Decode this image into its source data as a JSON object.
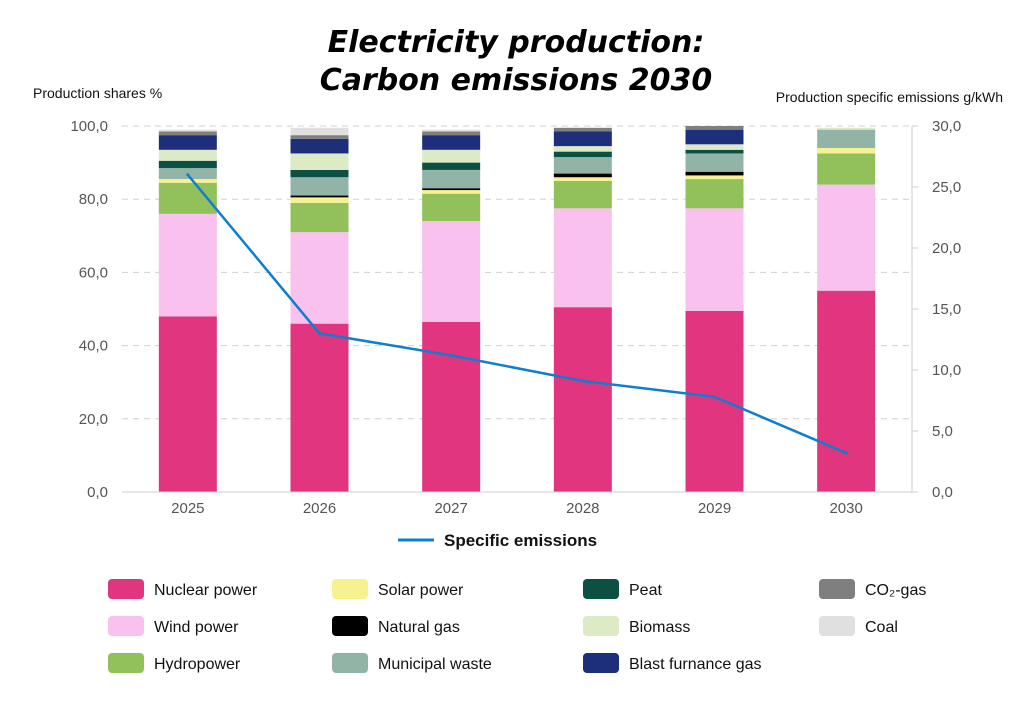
{
  "chart_data": {
    "type": "bar",
    "title_lines": [
      "Electricity production:",
      "Carbon emissions 2030"
    ],
    "ylabel_left": "Production shares %",
    "ylabel_right": "Production specific emissions g/kWh",
    "categories": [
      "2025",
      "2026",
      "2027",
      "2028",
      "2029",
      "2030"
    ],
    "ylim_left": [
      0,
      100
    ],
    "ylim_right": [
      0,
      30
    ],
    "left_ticks": [
      "0,0",
      "20,0",
      "40,0",
      "60,0",
      "80,0",
      "100,0"
    ],
    "right_ticks": [
      "0,0",
      "5,0",
      "10,0",
      "15,0",
      "20,0",
      "25,0",
      "30,0"
    ],
    "grid": "dashed horizontal",
    "stacked": true,
    "series": [
      {
        "name": "Nuclear power",
        "color": "#e2357f",
        "values": [
          48.0,
          46.0,
          46.5,
          50.5,
          49.5,
          55.0
        ]
      },
      {
        "name": "Wind power",
        "color": "#f9c1ee",
        "values": [
          28.0,
          25.0,
          27.5,
          27.0,
          28.0,
          29.0
        ]
      },
      {
        "name": "Hydropower",
        "color": "#92c05a",
        "values": [
          8.5,
          8.0,
          7.5,
          7.5,
          8.0,
          8.5
        ]
      },
      {
        "name": "Solar power",
        "color": "#f7f290",
        "values": [
          1.0,
          1.5,
          1.0,
          1.0,
          1.0,
          1.5
        ]
      },
      {
        "name": "Natural gas",
        "color": "#000000",
        "values": [
          0.0,
          0.5,
          0.5,
          1.0,
          1.0,
          0.0
        ]
      },
      {
        "name": "Municipal waste",
        "color": "#92b4a6",
        "values": [
          3.0,
          5.0,
          5.0,
          4.5,
          5.0,
          5.0
        ]
      },
      {
        "name": "Peat",
        "color": "#0b5043",
        "values": [
          2.0,
          2.0,
          2.0,
          1.5,
          1.0,
          0.0
        ]
      },
      {
        "name": "Biomass",
        "color": "#dceac6",
        "values": [
          3.0,
          4.5,
          3.5,
          1.5,
          1.5,
          0.5
        ]
      },
      {
        "name": "Blast furnance gas",
        "color": "#1d2f7a",
        "values": [
          4.0,
          4.0,
          4.0,
          4.0,
          4.0,
          0.0
        ]
      },
      {
        "name": "CO₂-gas",
        "color": "#7f7f7f",
        "values": [
          1.0,
          1.0,
          1.0,
          1.0,
          1.0,
          0.0
        ]
      },
      {
        "name": "Coal",
        "color": "#e0e0e0",
        "values": [
          0.5,
          2.0,
          0.5,
          0.0,
          0.0,
          0.0
        ]
      }
    ],
    "line_series": {
      "name": "Specific emissions",
      "color": "#0e7fd0",
      "axis": "right",
      "values": [
        26.0,
        13.0,
        11.2,
        9.1,
        7.8,
        3.2
      ]
    },
    "legend_placement": "bottom"
  }
}
